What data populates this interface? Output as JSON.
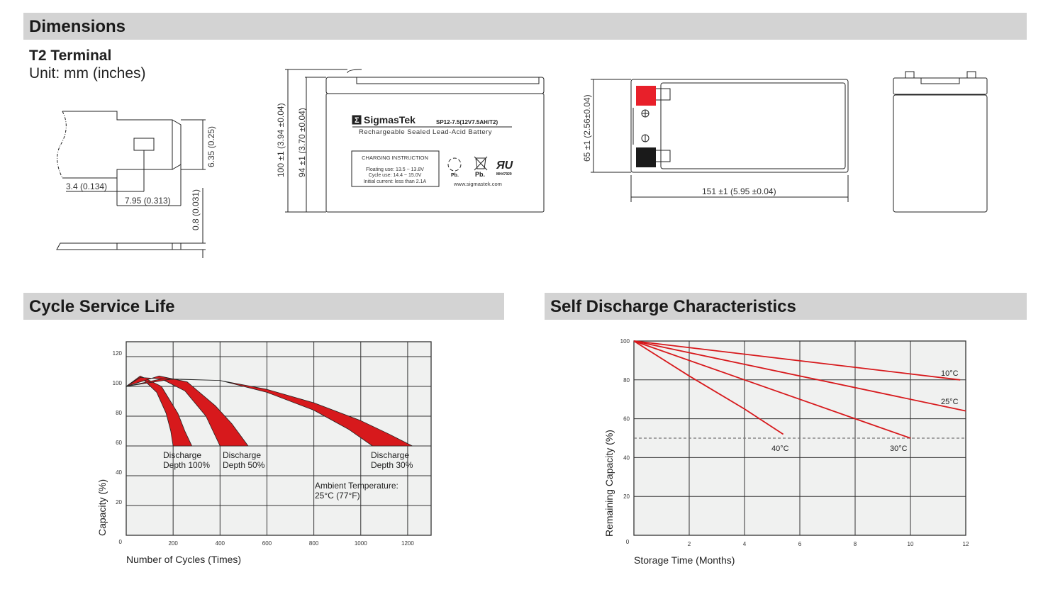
{
  "sections": {
    "dimensions": "Dimensions",
    "cycle_life": "Cycle Service Life",
    "self_discharge": "Self Discharge Characteristics"
  },
  "terminal": {
    "title": "T2 Terminal",
    "unit": "Unit: mm (inches)",
    "dim_height": "6.35 (0.25)",
    "dim_offset": "3.4 (0.134)",
    "dim_length": "7.95 (0.313)",
    "dim_thickness": "0.8 (0.031)"
  },
  "front_view": {
    "total_height": "100 ±1 (3.94 ±0.04)",
    "case_height": "94 ±1 (3.70 ±0.04)",
    "brand": "SigmasTek",
    "model": "SP12-7.5(12V7.5AH/T2)",
    "subtitle": "Rechargeable Sealed Lead-Acid Battery",
    "charging_title": "CHARGING INSTRUCTION",
    "charging_lines": [
      "Floating use: 13.5 ~ 13.8V",
      "Cycle use: 14.4 ~ 15.0V",
      "Initial current: less than 2.1A"
    ],
    "recycle_label": "Pb.",
    "bin_label": "Pb.",
    "ul_code": "MH47929",
    "website": "www.sigmastek.com"
  },
  "top_view": {
    "width_dim": "65 ±1 (2.56±0.04)",
    "length_dim": "151 ±1 (5.95 ±0.04)",
    "positive_color": "#e8202a",
    "negative_color": "#1a1a1a"
  },
  "colors": {
    "accent": "#d7191c",
    "header_bg": "#d3d3d3",
    "plot_bg": "#f0f1f0"
  },
  "chart_data": [
    {
      "type": "area",
      "title": "Cycle Service Life",
      "xlabel": "Number of Cycles (Times)",
      "ylabel": "Capacity (%)",
      "xlim": [
        0,
        1300
      ],
      "ylim": [
        0,
        130
      ],
      "xticks": [
        "200",
        "400",
        "600",
        "800",
        "1000",
        "1200"
      ],
      "yticks": [
        "0",
        "20",
        "40",
        "60",
        "80",
        "100",
        "120"
      ],
      "grid": true,
      "annotations": [
        "Ambient Temperature:",
        "25°C (77°F)"
      ],
      "series": [
        {
          "name": "Discharge Depth 100%",
          "label": [
            "Discharge",
            "Depth 100%"
          ],
          "upper": [
            [
              0,
              100
            ],
            [
              60,
              107
            ],
            [
              150,
              100
            ],
            [
              220,
              82
            ],
            [
              250,
              70
            ],
            [
              280,
              60
            ]
          ],
          "lower": [
            [
              0,
              100
            ],
            [
              70,
              105
            ],
            [
              130,
              96
            ],
            [
              170,
              82
            ],
            [
              190,
              70
            ],
            [
              200,
              60
            ]
          ]
        },
        {
          "name": "Discharge Depth 50%",
          "label": [
            "Discharge",
            "Depth 50%"
          ],
          "upper": [
            [
              0,
              100
            ],
            [
              140,
              107
            ],
            [
              260,
              103
            ],
            [
              380,
              87
            ],
            [
              450,
              75
            ],
            [
              520,
              60
            ]
          ],
          "lower": [
            [
              0,
              100
            ],
            [
              60,
              106
            ],
            [
              150,
              105
            ],
            [
              250,
              97
            ],
            [
              340,
              80
            ],
            [
              400,
              60
            ]
          ]
        },
        {
          "name": "Discharge Depth 30%",
          "label": [
            "Discharge",
            "Depth 30%"
          ],
          "upper": [
            [
              0,
              100
            ],
            [
              150,
              105
            ],
            [
              400,
              104
            ],
            [
              600,
              98
            ],
            [
              800,
              89
            ],
            [
              1000,
              77
            ],
            [
              1120,
              68
            ],
            [
              1220,
              60
            ]
          ],
          "lower": [
            [
              0,
              100
            ],
            [
              200,
              105
            ],
            [
              400,
              104
            ],
            [
              600,
              96
            ],
            [
              800,
              84
            ],
            [
              950,
              71
            ],
            [
              1050,
              60
            ]
          ]
        }
      ]
    },
    {
      "type": "line",
      "title": "Self Discharge Characteristics",
      "xlabel": "Storage Time (Months)",
      "ylabel": "Remaining Capacity (%)",
      "xlim": [
        0,
        12
      ],
      "ylim": [
        0,
        100
      ],
      "xticks": [
        "0",
        "2",
        "4",
        "6",
        "8",
        "10",
        "12"
      ],
      "yticks": [
        "20",
        "40",
        "60",
        "80",
        "100"
      ],
      "grid": true,
      "reference_line": 50,
      "series": [
        {
          "name": "10°C",
          "x": [
            0,
            11.8
          ],
          "y": [
            100,
            80
          ]
        },
        {
          "name": "25°C",
          "x": [
            0,
            12
          ],
          "y": [
            100,
            64
          ]
        },
        {
          "name": "30°C",
          "x": [
            0,
            4,
            8,
            10
          ],
          "y": [
            100,
            80,
            60,
            50
          ]
        },
        {
          "name": "40°C",
          "x": [
            0,
            2,
            4,
            5.4
          ],
          "y": [
            100,
            82,
            65,
            52
          ]
        }
      ]
    }
  ]
}
